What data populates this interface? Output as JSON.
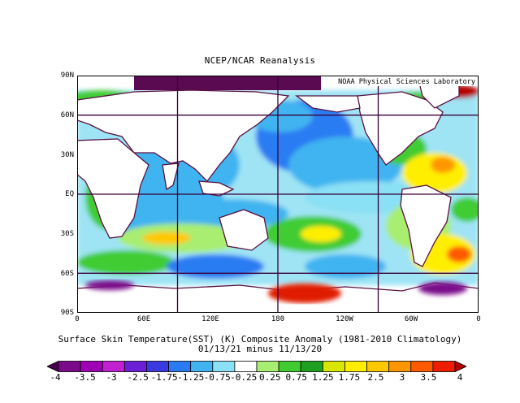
{
  "header": {
    "title": "NCEP/NCAR Reanalysis"
  },
  "map": {
    "credit": "NOAA Physical Sciences Laboratory",
    "lat_labels": [
      "90N",
      "60N",
      "30N",
      "EQ",
      "30S",
      "60S",
      "90S"
    ],
    "lon_labels": [
      "0",
      "60E",
      "120E",
      "180",
      "120W",
      "60W",
      "0"
    ],
    "gridline_lons": [
      "90E",
      "180",
      "90W"
    ],
    "gridline_lats": [
      "60N",
      "EQ",
      "60S"
    ]
  },
  "caption": {
    "line1": "Surface Skin Temperature(SST) (K) Composite Anomaly (1981-2010 Climatology)",
    "line2": "01/13/21 minus 11/13/20"
  },
  "colorbar": {
    "labels": [
      "-4",
      "-3.5",
      "-3",
      "-2.5",
      "-1.75",
      "-1.25",
      "-0.75",
      "-0.25",
      "0.25",
      "0.75",
      "1.25",
      "1.75",
      "2.5",
      "3",
      "3.5",
      "4"
    ],
    "colors": [
      "#4a0050",
      "#7a0a8a",
      "#a000b4",
      "#c020d0",
      "#6a1fd6",
      "#3a3ae0",
      "#2a7bf2",
      "#40b4f0",
      "#8ae0f4",
      "#ffffff",
      "#a8ee70",
      "#40cc30",
      "#20a020",
      "#d8e600",
      "#ffee00",
      "#ffc800",
      "#ff9600",
      "#ff5a00",
      "#f01e00",
      "#b40000"
    ]
  },
  "styles": {
    "land_outline": "#5a1040",
    "gridline": "#3a003a"
  }
}
